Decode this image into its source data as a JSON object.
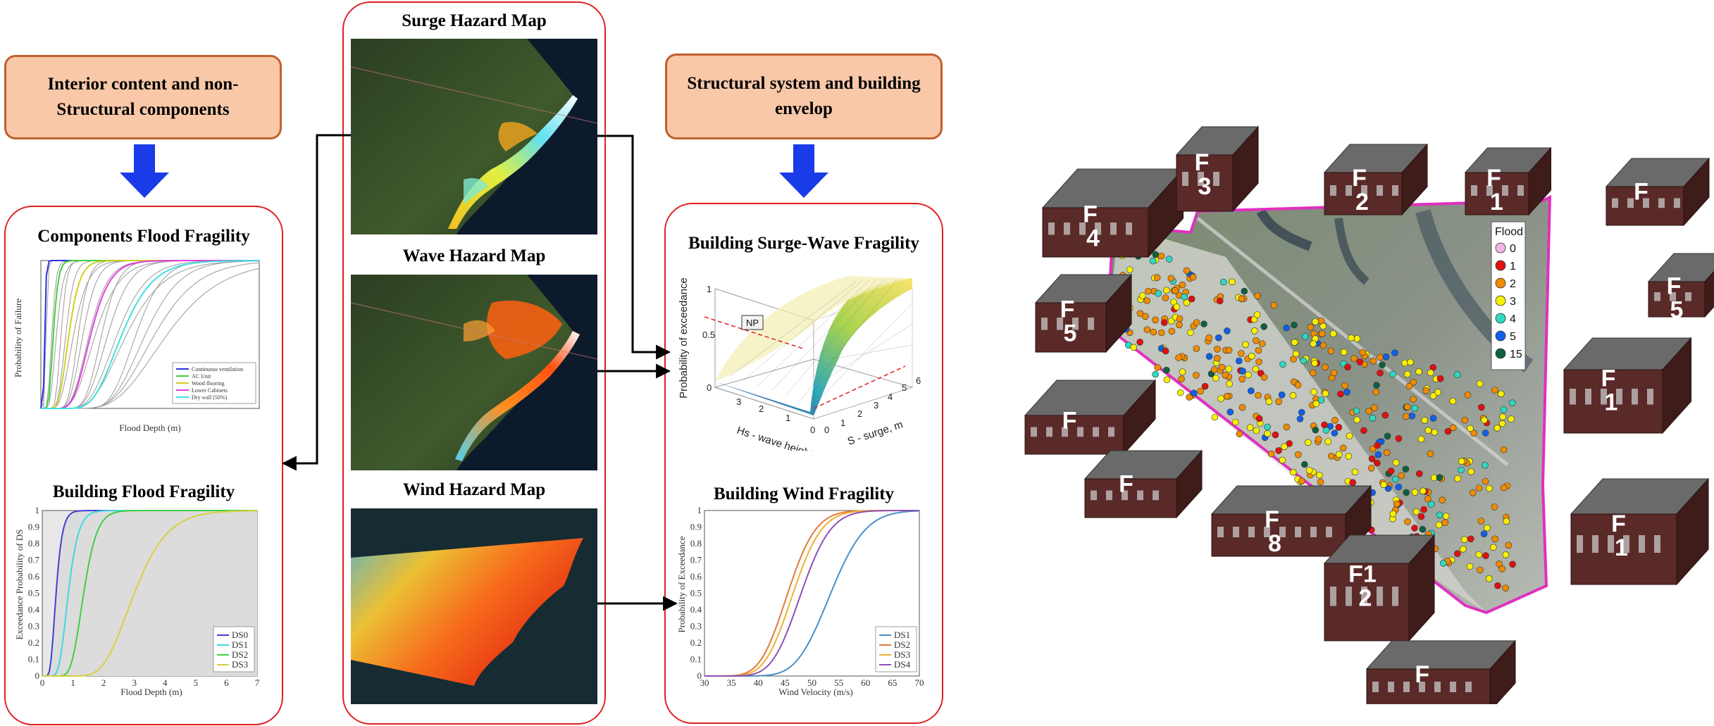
{
  "left_box": {
    "top_label": "Interior content and non-Structural components",
    "top_label_line1": "Interior content and non-",
    "top_label_line2": "Structural components",
    "chart1_title": "Components Flood Fragility",
    "chart1_ylabel": "Probability of Failure",
    "chart1_xlabel": "Flood Depth (m)",
    "chart1_legend": [
      "Continuous ventilation",
      "AC Unit",
      "Wood flooring",
      "Lower Cabinets",
      "Dry wall (50%)"
    ],
    "chart2_title": "Building Flood Fragility",
    "chart2_ylabel": "Exceedance Probability of DS",
    "chart2_xlabel": "Flood Depth (m)",
    "chart2_legend": [
      "DS0",
      "DS1",
      "DS2",
      "DS3"
    ]
  },
  "middle_box": {
    "map1_title": "Surge Hazard  Map",
    "map2_title": "Wave  Hazard  Map",
    "map3_title": "Wind  Hazard  Map"
  },
  "right_box": {
    "top_label": "Structural system and building envelop",
    "top_label_line1": "Structural system and building",
    "top_label_line2": "envelop",
    "chart1_title": "Building Surge-Wave Fragility",
    "chart1_zlabel": "Probability of exceedance",
    "chart1_xlabel": "Hs - wave height, m",
    "chart1_ylabel": "S - surge, m",
    "chart1_np": "NP",
    "chart2_title": "Building Wind Fragility",
    "chart2_ylabel": "Probability of Exceedance",
    "chart2_xlabel": "Wind Velocity (m/s)",
    "chart2_legend": [
      "DS1",
      "DS2",
      "DS3",
      "DS4"
    ]
  },
  "map_legend": {
    "title": "Flood",
    "items": [
      {
        "label": "0",
        "color": "#f2b6e6"
      },
      {
        "label": "1",
        "color": "#e01010"
      },
      {
        "label": "2",
        "color": "#f08c00"
      },
      {
        "label": "3",
        "color": "#f8f000"
      },
      {
        "label": "4",
        "color": "#30d8c0"
      },
      {
        "label": "5",
        "color": "#1060e8"
      },
      {
        "label": "15",
        "color": "#106040"
      }
    ]
  },
  "buildings": [
    {
      "id": "b-f4",
      "line1": "F",
      "line2": "4"
    },
    {
      "id": "b-f3",
      "line1": "F",
      "line2": "3"
    },
    {
      "id": "b-f2",
      "line1": "F",
      "line2": "2"
    },
    {
      "id": "b-f1",
      "line1": "F",
      "line2": "1"
    },
    {
      "id": "b-f",
      "line1": "F",
      "line2": ""
    },
    {
      "id": "b-f5r",
      "line1": "F",
      "line2": "5"
    },
    {
      "id": "b-f5",
      "line1": "F",
      "line2": "5"
    },
    {
      "id": "b-f-a",
      "line1": "F",
      "line2": ""
    },
    {
      "id": "b-f-b",
      "line1": "F",
      "line2": ""
    },
    {
      "id": "b-f1-b",
      "line1": "F",
      "line2": "1"
    },
    {
      "id": "b-f8",
      "line1": "F",
      "line2": "8"
    },
    {
      "id": "b-f12",
      "line1": "F1",
      "line2": "2"
    },
    {
      "id": "b-f11",
      "line1": "F",
      "line2": "1"
    },
    {
      "id": "b-f-c",
      "line1": "F",
      "line2": ""
    }
  ],
  "chart_data": [
    {
      "type": "line",
      "title": "Building Wind Fragility",
      "xlabel": "Wind Velocity (m/s)",
      "ylabel": "Probability of Exceedance",
      "xlim": [
        30,
        70
      ],
      "ylim": [
        0,
        1
      ],
      "x_ticks": [
        30,
        35,
        40,
        45,
        50,
        55,
        60,
        65,
        70
      ],
      "y_ticks": [
        0,
        0.1,
        0.2,
        0.3,
        0.4,
        0.5,
        0.6,
        0.7,
        0.8,
        0.9,
        1
      ],
      "legend_position": "bottom-right",
      "series": [
        {
          "name": "DS1",
          "color": "#4a90c8",
          "median": 53.5,
          "spread": 0.095
        },
        {
          "name": "DS2",
          "color": "#e07b39",
          "median": 45.5,
          "spread": 0.09
        },
        {
          "name": "DS3",
          "color": "#f0b030",
          "median": 46.5,
          "spread": 0.09
        },
        {
          "name": "DS4",
          "color": "#9050b0",
          "median": 48.0,
          "spread": 0.09
        }
      ]
    },
    {
      "type": "line",
      "title": "Building Flood Fragility",
      "xlabel": "Flood Depth (m)",
      "ylabel": "Exceedance Probability of DS",
      "xlim": [
        0,
        7
      ],
      "ylim": [
        0,
        1
      ],
      "x_ticks": [
        0,
        1,
        2,
        3,
        4,
        5,
        6,
        7
      ],
      "y_ticks": [
        0,
        0.1,
        0.2,
        0.3,
        0.4,
        0.5,
        0.6,
        0.7,
        0.8,
        0.9,
        1
      ],
      "legend_position": "bottom-right",
      "series": [
        {
          "name": "DS0",
          "color": "#4040d0",
          "median": 0.45,
          "spread": 0.35
        },
        {
          "name": "DS1",
          "color": "#40d8e0",
          "median": 0.85,
          "spread": 0.3
        },
        {
          "name": "DS2",
          "color": "#40d040",
          "median": 1.35,
          "spread": 0.25
        },
        {
          "name": "DS3",
          "color": "#d8d040",
          "median": 3.0,
          "spread": 0.28
        }
      ]
    }
  ]
}
